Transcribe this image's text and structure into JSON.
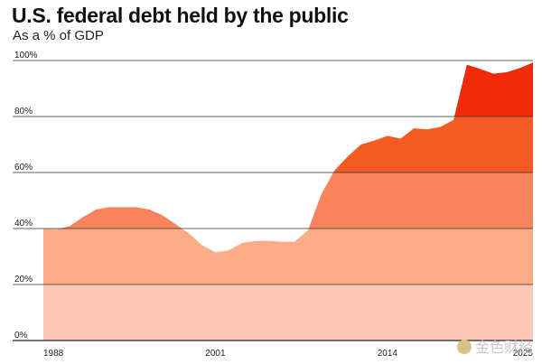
{
  "chart_data": {
    "type": "area",
    "title": "U.S. federal debt held by the public",
    "subtitle": "As a % of GDP",
    "xlabel": "",
    "ylabel": "",
    "ylim": [
      0,
      100
    ],
    "xlim": [
      1988,
      2025
    ],
    "yticks": [
      0,
      20,
      40,
      60,
      80,
      100
    ],
    "ytick_labels": [
      "0%",
      "20%",
      "40%",
      "60%",
      "80%",
      "100%"
    ],
    "xticks": [
      1988,
      2001,
      2014,
      2025
    ],
    "xtick_labels": [
      "1988",
      "2001",
      "2014",
      "2025"
    ],
    "grid": true,
    "legend": "none",
    "band_colors": [
      "#fcc9b9",
      "#fbab86",
      "#f9835c",
      "#f55a22",
      "#f12a0a"
    ],
    "series": [
      {
        "x": [
          1988,
          1989,
          1990,
          1991,
          1992,
          1993,
          1994,
          1995,
          1996,
          1997,
          1998,
          1999,
          2000,
          2001,
          2002,
          2003,
          2004,
          2005,
          2006,
          2007,
          2008,
          2009,
          2010,
          2011,
          2012,
          2013,
          2014,
          2015,
          2016,
          2017,
          2018,
          2019,
          2020,
          2021,
          2022,
          2023,
          2024,
          2025
        ],
        "values": [
          40.0,
          39.7,
          40.9,
          44.1,
          46.8,
          47.6,
          47.6,
          47.6,
          46.8,
          44.7,
          41.5,
          38.3,
          34.0,
          31.5,
          32.2,
          34.8,
          35.5,
          35.6,
          35.3,
          35.3,
          39.4,
          52.2,
          60.7,
          65.7,
          70.0,
          71.4,
          73.1,
          72.1,
          75.8,
          75.4,
          76.3,
          78.8,
          98.5,
          97.0,
          95.3,
          95.8,
          97.3,
          99.3
        ]
      }
    ]
  },
  "watermark": "金色财经"
}
